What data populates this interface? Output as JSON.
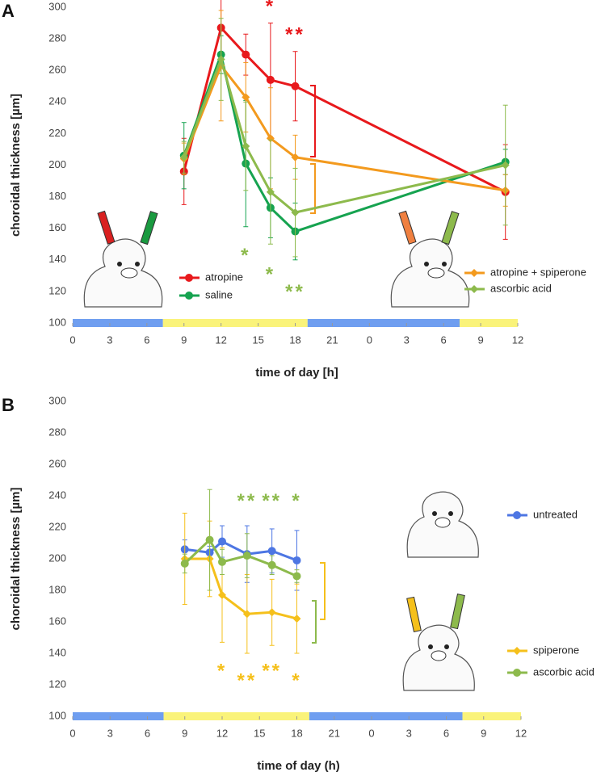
{
  "chart_data": [
    {
      "type": "line",
      "panel": "A",
      "ylabel": "choroidal thickness [µm]",
      "xlabel": "time of day [h]",
      "x": [
        9,
        12,
        14,
        16,
        18,
        35
      ],
      "xlim": [
        0,
        36
      ],
      "xticks": [
        0,
        3,
        6,
        9,
        12,
        15,
        18,
        21,
        {
          "value": 24,
          "label": "0"
        },
        {
          "value": 27,
          "label": "3"
        },
        {
          "value": 30,
          "label": "6"
        },
        {
          "value": 33,
          "label": "9"
        },
        {
          "value": 36,
          "label": "12"
        }
      ],
      "ylim": [
        100,
        300
      ],
      "yticks": [
        100,
        120,
        140,
        160,
        180,
        200,
        220,
        240,
        260,
        280,
        300
      ],
      "bands": [
        {
          "from": 0,
          "to": 7.3,
          "color": "#6f9ef0"
        },
        {
          "from": 7.3,
          "to": 19,
          "color": "#faf37a"
        },
        {
          "from": 19,
          "to": 31.3,
          "color": "#6f9ef0"
        },
        {
          "from": 31.3,
          "to": 36,
          "color": "#faf37a"
        }
      ],
      "series": [
        {
          "name": "atropine",
          "color": "#e8191c",
          "marker": "circle",
          "values": [
            196,
            287,
            270,
            254,
            250,
            183
          ],
          "errors": [
            21,
            18,
            13,
            36,
            22,
            30
          ]
        },
        {
          "name": "saline",
          "color": "#16a350",
          "marker": "circle",
          "values": [
            206,
            270,
            201,
            173,
            158,
            202
          ],
          "errors": [
            21,
            12,
            40,
            19,
            18,
            8
          ]
        },
        {
          "name": "atropine + spiperone",
          "color": "#f39a1e",
          "marker": "diamond",
          "values": [
            204,
            263,
            243,
            217,
            205,
            184
          ],
          "errors": [
            10,
            35,
            22,
            32,
            14,
            10
          ]
        },
        {
          "name": "ascorbic acid",
          "color": "#8dba4c",
          "marker": "diamond",
          "values": [
            205,
            267,
            212,
            183,
            170,
            200
          ],
          "errors": [
            10,
            26,
            28,
            33,
            28,
            38
          ]
        }
      ],
      "annotations": [
        {
          "text": "*",
          "x": 16,
          "y": 300,
          "color": "#e8191c"
        },
        {
          "text": "**",
          "x": 18,
          "y": 282,
          "color": "#e8191c"
        },
        {
          "text": "*",
          "x": 14,
          "y": 142,
          "color": "#8dba4c"
        },
        {
          "text": "*",
          "x": 16,
          "y": 130,
          "color": "#8dba4c"
        },
        {
          "text": "**",
          "x": 18,
          "y": 119,
          "color": "#8dba4c"
        }
      ]
    },
    {
      "type": "line",
      "panel": "B",
      "ylabel": "choroidal thickness [µm]",
      "xlabel": "time of day (h)",
      "x": [
        9,
        11,
        12,
        14,
        16,
        18
      ],
      "xlim": [
        0,
        36
      ],
      "xticks": [
        0,
        3,
        6,
        9,
        12,
        15,
        18,
        21,
        {
          "value": 24,
          "label": "0"
        },
        {
          "value": 27,
          "label": "3"
        },
        {
          "value": 30,
          "label": "6"
        },
        {
          "value": 33,
          "label": "9"
        },
        {
          "value": 36,
          "label": "12"
        }
      ],
      "ylim": [
        100,
        300
      ],
      "yticks": [
        100,
        120,
        140,
        160,
        180,
        200,
        220,
        240,
        260,
        280,
        300
      ],
      "bands": [
        {
          "from": 0,
          "to": 7.3,
          "color": "#6f9ef0"
        },
        {
          "from": 7.3,
          "to": 19,
          "color": "#faf37a"
        },
        {
          "from": 19,
          "to": 31.3,
          "color": "#6f9ef0"
        },
        {
          "from": 31.3,
          "to": 36,
          "color": "#faf37a"
        }
      ],
      "series": [
        {
          "name": "untreated",
          "color": "#4d76e3",
          "marker": "circle",
          "values": [
            206,
            204,
            211,
            203,
            205,
            199
          ],
          "errors": [
            6,
            4,
            10,
            18,
            14,
            19
          ]
        },
        {
          "name": "spiperone",
          "color": "#f5c01b",
          "marker": "diamond",
          "values": [
            200,
            200,
            177,
            165,
            166,
            162
          ],
          "errors": [
            29,
            24,
            30,
            25,
            21,
            22
          ]
        },
        {
          "name": "ascorbic acid",
          "color": "#8dba4c",
          "marker": "circle",
          "values": [
            197,
            212,
            198,
            202,
            196,
            189
          ],
          "errors": [
            6,
            32,
            8,
            14,
            6,
            4
          ]
        }
      ],
      "annotations": [
        {
          "text": "**",
          "x": 14,
          "y": 236,
          "color": "#8dba4c"
        },
        {
          "text": "**",
          "x": 16,
          "y": 236,
          "color": "#8dba4c"
        },
        {
          "text": "*",
          "x": 18,
          "y": 236,
          "color": "#8dba4c"
        },
        {
          "text": "*",
          "x": 12,
          "y": 128,
          "color": "#f5c01b"
        },
        {
          "text": "**",
          "x": 14,
          "y": 122,
          "color": "#f5c01b"
        },
        {
          "text": "**",
          "x": 16,
          "y": 128,
          "color": "#f5c01b"
        },
        {
          "text": "*",
          "x": 18,
          "y": 122,
          "color": "#f5c01b"
        }
      ]
    }
  ]
}
